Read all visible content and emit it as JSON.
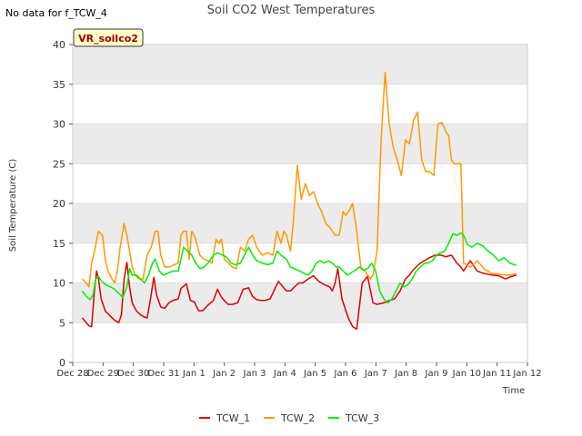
{
  "top_note": "No data for f_TCW_4",
  "station_label": "VR_soilco2",
  "chart_data": {
    "type": "line",
    "title": "Soil CO2 West Temperatures",
    "xlabel": "Time",
    "ylabel": "Soil Temperature (C)",
    "ylim": [
      0,
      40
    ],
    "yticks": [
      0,
      5,
      10,
      15,
      20,
      25,
      30,
      35,
      40
    ],
    "xlim": [
      0,
      15
    ],
    "xtick_values": [
      0,
      1,
      2,
      3,
      4,
      5,
      6,
      7,
      8,
      9,
      10,
      11,
      12,
      13,
      14,
      15
    ],
    "xtick_labels": [
      "Dec 28",
      "Dec 29",
      "Dec 30",
      "Dec 31",
      "Jan 1",
      "Jan 2",
      "Jan 3",
      "Jan 4",
      "Jan 5",
      "Jan 6",
      "Jan 7",
      "Jan 8",
      "Jan 9",
      "Jan 10",
      "Jan 11",
      "Jan 12"
    ],
    "grid": true,
    "legend_position": "bottom",
    "series": [
      {
        "name": "TCW_1",
        "color": "#dd0000",
        "x": [
          0.35,
          0.5,
          0.6,
          0.7,
          0.8,
          0.88,
          0.95,
          1.05,
          1.2,
          1.4,
          1.55,
          1.7,
          1.8,
          1.9,
          2.0,
          2.1,
          2.2,
          2.35,
          2.5,
          2.65,
          2.75,
          2.85,
          3.0,
          3.1,
          3.25,
          3.4,
          3.55,
          3.7,
          3.9,
          4.0,
          4.2,
          4.35,
          4.5,
          4.65,
          4.8,
          5.0,
          5.2,
          5.35,
          5.5,
          5.65,
          5.75,
          5.9,
          6.1,
          6.3,
          6.5,
          6.65,
          6.8,
          6.95,
          7.1,
          7.3,
          7.6,
          7.9,
          8.05,
          8.2,
          8.35,
          8.5,
          8.7,
          8.9,
          9.1,
          9.2,
          9.3,
          9.5,
          9.6,
          9.7,
          9.8,
          9.95,
          10.1,
          10.2,
          10.35,
          10.5,
          10.7,
          10.9,
          11.1,
          11.25,
          11.5,
          11.7,
          11.9,
          12.1,
          12.3,
          12.45,
          12.55,
          12.7,
          12.85,
          13.0,
          13.2,
          13.4,
          13.6,
          13.8,
          14.0,
          14.2,
          14.35
        ],
        "values": [
          5.6,
          5.0,
          4.6,
          4.5,
          9.0,
          11.5,
          10.5,
          8.0,
          6.5,
          5.8,
          5.3,
          5.0,
          6.0,
          10.5,
          12.6,
          9.5,
          7.5,
          6.5,
          6.0,
          5.7,
          5.6,
          7.5,
          10.7,
          8.5,
          7.0,
          6.8,
          7.5,
          7.8,
          8.0,
          9.3,
          9.9,
          7.8,
          7.6,
          6.5,
          6.5,
          7.2,
          7.8,
          9.2,
          8.2,
          7.6,
          7.3,
          7.3,
          7.5,
          9.2,
          9.4,
          8.3,
          7.9,
          7.8,
          7.8,
          8.0,
          10.2,
          9.0,
          9.0,
          9.5,
          10.0,
          10.0,
          10.5,
          10.9,
          10.2,
          10.0,
          9.8,
          9.5,
          9.0,
          10.0,
          11.8,
          8.0,
          6.5,
          5.5,
          4.5,
          4.2,
          10.0,
          10.8,
          7.5,
          7.3,
          7.5,
          7.8,
          8.0,
          9.0,
          10.5,
          11.0,
          11.5,
          12.0,
          12.5,
          12.8,
          13.2,
          13.5,
          13.5,
          13.3,
          13.5,
          12.5,
          12.0
        ],
        "last_x": [
          14.45,
          14.7,
          14.95,
          15.2,
          15.5,
          15.75,
          16.0,
          16.2,
          16.4
        ],
        "last_values": [
          11.5,
          12.8,
          11.5,
          11.2,
          11.0,
          10.9,
          10.5,
          10.8,
          11.0
        ]
      },
      {
        "name": "TCW_2",
        "color": "#ff9900",
        "x": [
          0.35,
          0.5,
          0.6,
          0.7,
          0.8,
          0.95,
          1.1,
          1.2,
          1.3,
          1.45,
          1.55,
          1.65,
          1.75,
          1.9,
          2.0,
          2.1,
          2.2,
          2.3,
          2.45,
          2.6,
          2.75,
          2.9,
          3.05,
          3.15,
          3.25,
          3.4,
          3.6,
          3.75,
          3.9,
          4.0,
          4.1,
          4.2,
          4.3,
          4.4,
          4.5,
          4.7,
          4.85,
          5.0,
          5.15,
          5.3,
          5.4,
          5.5,
          5.6,
          5.75,
          5.9,
          6.05,
          6.2,
          6.35,
          6.5,
          6.65,
          6.8,
          7.0,
          7.2,
          7.4,
          7.55,
          7.7,
          7.8,
          7.9,
          8.05,
          8.15,
          8.3,
          8.45,
          8.6,
          8.75,
          8.9,
          9.05,
          9.2,
          9.35,
          9.5,
          9.6,
          9.7,
          9.85,
          10.0,
          10.1,
          10.2,
          10.35,
          10.5,
          10.65,
          10.8,
          10.9,
          11.0,
          11.1,
          11.25,
          11.4,
          11.55,
          11.7,
          11.85,
          12.0,
          12.15,
          12.3,
          12.45,
          12.6,
          12.75,
          12.9,
          13.05,
          13.2,
          13.35,
          13.5,
          13.65,
          13.8,
          13.9,
          14.0,
          14.1,
          14.2,
          14.35
        ],
        "values": [
          10.5,
          10.0,
          9.5,
          12.5,
          14.0,
          16.5,
          16.0,
          13.0,
          11.5,
          10.5,
          10.0,
          11.5,
          14.5,
          17.5,
          16.0,
          14.0,
          12.0,
          11.0,
          10.5,
          10.5,
          13.5,
          14.5,
          16.5,
          16.5,
          13.5,
          12.0,
          12.0,
          12.3,
          12.5,
          16.0,
          16.5,
          16.5,
          13.0,
          16.5,
          16.0,
          13.5,
          13.0,
          12.8,
          12.5,
          15.5,
          15.0,
          15.5,
          13.0,
          12.5,
          12.0,
          11.8,
          14.5,
          14.0,
          15.5,
          16.0,
          14.5,
          13.5,
          13.8,
          13.5,
          16.5,
          15.0,
          16.5,
          16.0,
          14.0,
          17.5,
          24.8,
          20.5,
          22.5,
          21.0,
          21.5,
          20.0,
          19.0,
          17.5,
          17.0,
          16.5,
          16.0,
          16.0,
          19.0,
          18.5,
          19.0,
          20.0,
          16.5,
          12.0,
          11.5,
          11.0,
          10.5,
          11.0,
          14.0,
          28.0,
          36.5,
          30.0,
          27.0,
          25.5,
          23.5,
          28.0,
          27.5,
          30.5,
          31.5,
          25.5,
          24.0,
          24.0,
          23.5,
          30.0,
          30.2,
          29.0,
          28.5,
          25.5,
          25.0,
          25.0,
          25.0
        ],
        "last_x": [
          14.45,
          14.7,
          14.95,
          15.2,
          15.5,
          15.75,
          16.0,
          16.2,
          16.4
        ],
        "last_values": [
          12.5,
          12.0,
          12.8,
          11.8,
          11.2,
          11.1,
          11.0,
          11.0,
          11.2
        ]
      },
      {
        "name": "TCW_3",
        "color": "#00ee00",
        "x": [
          0.35,
          0.5,
          0.65,
          0.75,
          0.85,
          0.95,
          1.05,
          1.2,
          1.4,
          1.55,
          1.7,
          1.85,
          2.0,
          2.1,
          2.2,
          2.35,
          2.5,
          2.65,
          2.8,
          2.95,
          3.05,
          3.2,
          3.35,
          3.5,
          3.7,
          3.9,
          4.0,
          4.1,
          4.25,
          4.4,
          4.55,
          4.7,
          4.85,
          5.0,
          5.2,
          5.35,
          5.55,
          5.7,
          5.85,
          6.0,
          6.2,
          6.35,
          6.5,
          6.65,
          6.8,
          7.0,
          7.2,
          7.4,
          7.55,
          7.7,
          7.9,
          8.05,
          8.2,
          8.4,
          8.55,
          8.7,
          8.85,
          9.0,
          9.15,
          9.3,
          9.45,
          9.6,
          9.75,
          9.85,
          10.0,
          10.15,
          10.3,
          10.45,
          10.6,
          10.75,
          10.9,
          11.05,
          11.2,
          11.35,
          11.5,
          11.65,
          11.8,
          11.95,
          12.1,
          12.25,
          12.4,
          12.55,
          12.7,
          12.85,
          13.0,
          13.15,
          13.3,
          13.45,
          13.6,
          13.75,
          13.9,
          14.05,
          14.2,
          14.35
        ],
        "values": [
          9.0,
          8.3,
          7.9,
          8.5,
          10.5,
          10.8,
          10.3,
          9.8,
          9.5,
          9.2,
          8.7,
          8.2,
          9.5,
          11.8,
          11.0,
          11.0,
          10.5,
          10.0,
          11.0,
          12.5,
          13.0,
          11.5,
          11.0,
          11.2,
          11.5,
          11.5,
          13.0,
          14.5,
          14.0,
          13.5,
          12.5,
          11.8,
          12.0,
          12.5,
          13.5,
          13.8,
          13.5,
          13.2,
          12.5,
          12.3,
          12.5,
          13.5,
          14.5,
          13.5,
          12.8,
          12.5,
          12.3,
          12.5,
          14.0,
          13.5,
          13.0,
          12.0,
          11.8,
          11.5,
          11.2,
          11.0,
          11.5,
          12.5,
          12.8,
          12.5,
          12.8,
          12.5,
          12.0,
          12.0,
          11.5,
          11.0,
          11.3,
          11.6,
          12.0,
          11.6,
          11.8,
          12.5,
          11.5,
          9.0,
          8.0,
          7.5,
          8.0,
          9.0,
          10.0,
          9.5,
          9.8,
          10.5,
          11.5,
          12.0,
          12.5,
          12.5,
          12.8,
          13.5,
          13.8,
          14.0,
          15.0,
          16.2,
          16.0,
          16.3
        ],
        "last_x": [
          14.45,
          14.6,
          14.75,
          14.95,
          15.15,
          15.35,
          15.55,
          15.75,
          15.95,
          16.15,
          16.4
        ],
        "last_values": [
          16.0,
          14.8,
          14.5,
          15.0,
          14.7,
          14.0,
          13.5,
          12.8,
          13.2,
          12.5,
          12.2
        ]
      }
    ]
  }
}
